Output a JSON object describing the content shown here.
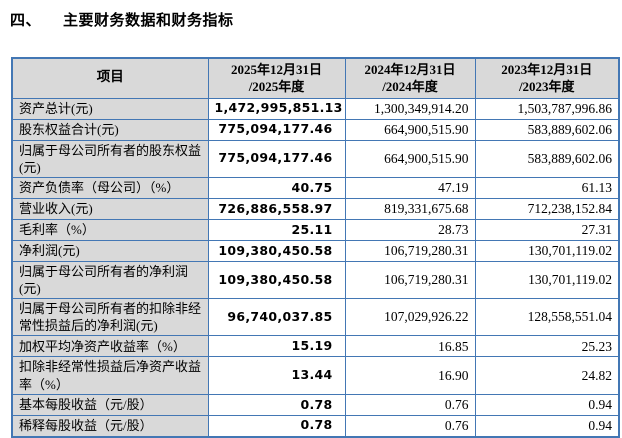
{
  "page": {
    "section_number": "四、",
    "title": "主要财务数据和财务指标"
  },
  "colors": {
    "table_border": "#4377b4",
    "header_background": "#d9d9d9",
    "label_column_background": "#d9d9d9",
    "text": "#000000"
  },
  "table": {
    "item_header": "项目",
    "col_headers": [
      {
        "line1": "2025年12月31日",
        "line2": "/2025年度"
      },
      {
        "line1": "2024年12月31日",
        "line2": "/2024年度"
      },
      {
        "line1": "2023年12月31日",
        "line2": "/2023年度"
      }
    ],
    "rows": [
      {
        "label": "资产总计(元)",
        "values": [
          "1,472,995,851.13",
          "1,300,349,914.20",
          "1,503,787,996.86"
        ]
      },
      {
        "label": "股东权益合计(元)",
        "values": [
          "775,094,177.46",
          "664,900,515.90",
          "583,889,602.06"
        ]
      },
      {
        "label": "归属于母公司所有者的股东权益(元)",
        "values": [
          "775,094,177.46",
          "664,900,515.90",
          "583,889,602.06"
        ]
      },
      {
        "label": "资产负债率（母公司）（%）",
        "values": [
          "40.75",
          "47.19",
          "61.13"
        ]
      },
      {
        "label": "营业收入(元)",
        "values": [
          "726,886,558.97",
          "819,331,675.68",
          "712,238,152.84"
        ]
      },
      {
        "label": "毛利率（%）",
        "values": [
          "25.11",
          "28.73",
          "27.31"
        ]
      },
      {
        "label": "净利润(元)",
        "values": [
          "109,380,450.58",
          "106,719,280.31",
          "130,701,119.02"
        ]
      },
      {
        "label": "归属于母公司所有者的净利润(元)",
        "values": [
          "109,380,450.58",
          "106,719,280.31",
          "130,701,119.02"
        ]
      },
      {
        "label": "归属于母公司所有者的扣除非经常性损益后的净利润(元)",
        "values": [
          "96,740,037.85",
          "107,029,926.22",
          "128,558,551.04"
        ]
      },
      {
        "label": "加权平均净资产收益率（%）",
        "values": [
          "15.19",
          "16.85",
          "25.23"
        ]
      },
      {
        "label": "扣除非经常性损益后净资产收益率（%）",
        "values": [
          "13.44",
          "16.90",
          "24.82"
        ]
      },
      {
        "label": "基本每股收益（元/股）",
        "values": [
          "0.78",
          "0.76",
          "0.94"
        ]
      },
      {
        "label": "稀释每股收益（元/股）",
        "values": [
          "0.78",
          "0.76",
          "0.94"
        ]
      }
    ]
  }
}
